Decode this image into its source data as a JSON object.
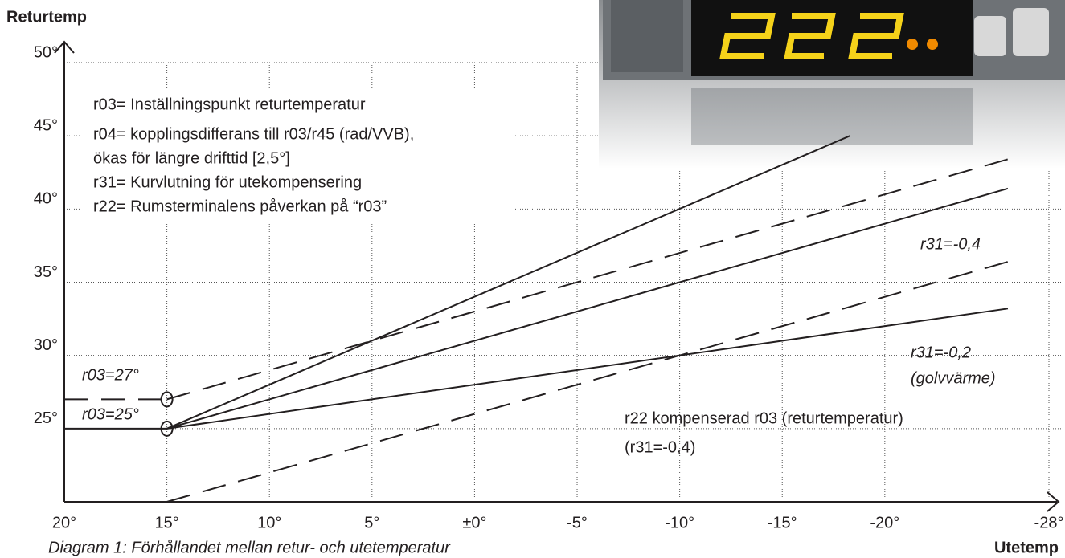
{
  "chart_data": {
    "type": "line",
    "x_label": "Utetemp",
    "y_label": "Returtemp",
    "caption": "Diagram 1: Förhållandet mellan retur- och utetemperatur",
    "xlim": [
      20,
      -28
    ],
    "ylim": [
      20,
      50
    ],
    "xticks": [
      {
        "value": 20,
        "label": "20°"
      },
      {
        "value": 15,
        "label": "15°"
      },
      {
        "value": 10,
        "label": "10°"
      },
      {
        "value": 5,
        "label": "5°"
      },
      {
        "value": 0,
        "label": "±0°"
      },
      {
        "value": -5,
        "label": "-5°"
      },
      {
        "value": -10,
        "label": "-10°"
      },
      {
        "value": -15,
        "label": "-15°"
      },
      {
        "value": -20,
        "label": "-20°"
      },
      {
        "value": -28,
        "label": "-28°"
      }
    ],
    "yticks": [
      {
        "value": 25,
        "label": "25°"
      },
      {
        "value": 30,
        "label": "30°"
      },
      {
        "value": 35,
        "label": "35°"
      },
      {
        "value": 40,
        "label": "40°"
      },
      {
        "value": 45,
        "label": "45°"
      },
      {
        "value": 50,
        "label": "50°"
      }
    ],
    "grid": true,
    "color": "#231f20",
    "series": [
      {
        "x": [
          20,
          15
        ],
        "values": [
          25,
          25
        ],
        "line_style": "solid"
      },
      {
        "x": [
          20,
          15
        ],
        "values": [
          27,
          27
        ],
        "line_style": "dashed"
      },
      {
        "x": [
          15,
          -18.3
        ],
        "values": [
          25,
          45
        ],
        "line_style": "solid"
      },
      {
        "x": [
          15,
          -26
        ],
        "values": [
          25,
          41.4
        ],
        "line_style": "solid"
      },
      {
        "x": [
          15,
          -26
        ],
        "values": [
          25,
          33.2
        ],
        "line_style": "solid"
      },
      {
        "x": [
          15,
          -26
        ],
        "values": [
          27,
          43.4
        ],
        "line_style": "dashed"
      },
      {
        "x": [
          15,
          -26
        ],
        "values": [
          20,
          36.4
        ],
        "line_style": "dashed"
      }
    ],
    "annotations": [
      "r03= Inställningspunkt returtemperatur",
      "r04= kopplingsdifferans till r03/r45 (rad/VVB),",
      "ökas för längre drifttid [2,5°]",
      "r31= Kurvlutning för utekompensering",
      "r22= Rumsterminalens påverkan på “r03”",
      "r03=27°",
      "r03=25°",
      "r31=-0,4",
      "r31=-0,2",
      "(golvvärme)",
      "r22 kompenserad r03 (returtemperatur)",
      "(r31=-0,4)"
    ]
  }
}
